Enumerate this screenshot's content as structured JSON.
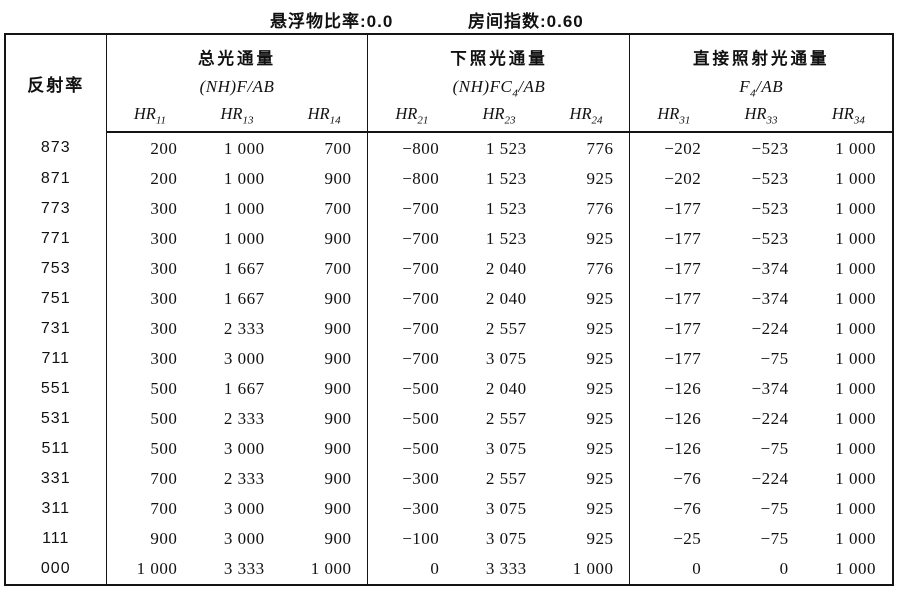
{
  "captions": {
    "suspension_ratio": "悬浮物比率:0.0",
    "room_index": "房间指数:0.60"
  },
  "table": {
    "row_header": "反射率",
    "groups": [
      {
        "title": "总光通量",
        "formula": {
          "pre": "(NH)F",
          "sub": "",
          "post": "/AB"
        },
        "columns": [
          {
            "base": "HR",
            "sub": "11"
          },
          {
            "base": "HR",
            "sub": "13"
          },
          {
            "base": "HR",
            "sub": "14"
          }
        ]
      },
      {
        "title": "下照光通量",
        "formula": {
          "pre": "(NH)FC",
          "sub": "4",
          "post": "/AB"
        },
        "columns": [
          {
            "base": "HR",
            "sub": "21"
          },
          {
            "base": "HR",
            "sub": "23"
          },
          {
            "base": "HR",
            "sub": "24"
          }
        ]
      },
      {
        "title": "直接照射光通量",
        "formula": {
          "pre": "F",
          "sub": "4",
          "post": "/AB"
        },
        "columns": [
          {
            "base": "HR",
            "sub": "31"
          },
          {
            "base": "HR",
            "sub": "33"
          },
          {
            "base": "HR",
            "sub": "34"
          }
        ]
      }
    ],
    "rows": [
      {
        "r": "873",
        "c": [
          "200",
          "1 000",
          "700",
          "−800",
          "1 523",
          "776",
          "−202",
          "−523",
          "1 000"
        ]
      },
      {
        "r": "871",
        "c": [
          "200",
          "1 000",
          "900",
          "−800",
          "1 523",
          "925",
          "−202",
          "−523",
          "1 000"
        ]
      },
      {
        "r": "773",
        "c": [
          "300",
          "1 000",
          "700",
          "−700",
          "1 523",
          "776",
          "−177",
          "−523",
          "1 000"
        ]
      },
      {
        "r": "771",
        "c": [
          "300",
          "1 000",
          "900",
          "−700",
          "1 523",
          "925",
          "−177",
          "−523",
          "1 000"
        ]
      },
      {
        "r": "753",
        "c": [
          "300",
          "1 667",
          "700",
          "−700",
          "2 040",
          "776",
          "−177",
          "−374",
          "1 000"
        ]
      },
      {
        "r": "751",
        "c": [
          "300",
          "1 667",
          "900",
          "−700",
          "2 040",
          "925",
          "−177",
          "−374",
          "1 000"
        ]
      },
      {
        "r": "731",
        "c": [
          "300",
          "2 333",
          "900",
          "−700",
          "2 557",
          "925",
          "−177",
          "−224",
          "1 000"
        ]
      },
      {
        "r": "711",
        "c": [
          "300",
          "3 000",
          "900",
          "−700",
          "3 075",
          "925",
          "−177",
          "−75",
          "1 000"
        ]
      },
      {
        "r": "551",
        "c": [
          "500",
          "1 667",
          "900",
          "−500",
          "2 040",
          "925",
          "−126",
          "−374",
          "1 000"
        ]
      },
      {
        "r": "531",
        "c": [
          "500",
          "2 333",
          "900",
          "−500",
          "2 557",
          "925",
          "−126",
          "−224",
          "1 000"
        ]
      },
      {
        "r": "511",
        "c": [
          "500",
          "3 000",
          "900",
          "−500",
          "3 075",
          "925",
          "−126",
          "−75",
          "1 000"
        ]
      },
      {
        "r": "331",
        "c": [
          "700",
          "2 333",
          "900",
          "−300",
          "2 557",
          "925",
          "−76",
          "−224",
          "1 000"
        ]
      },
      {
        "r": "311",
        "c": [
          "700",
          "3 000",
          "900",
          "−300",
          "3 075",
          "925",
          "−76",
          "−75",
          "1 000"
        ]
      },
      {
        "r": "111",
        "c": [
          "900",
          "3 000",
          "900",
          "−100",
          "3 075",
          "925",
          "−25",
          "−75",
          "1 000"
        ]
      },
      {
        "r": "000",
        "c": [
          "1 000",
          "3 333",
          "1 000",
          "0",
          "3 333",
          "1 000",
          "0",
          "0",
          "1 000"
        ]
      }
    ]
  }
}
